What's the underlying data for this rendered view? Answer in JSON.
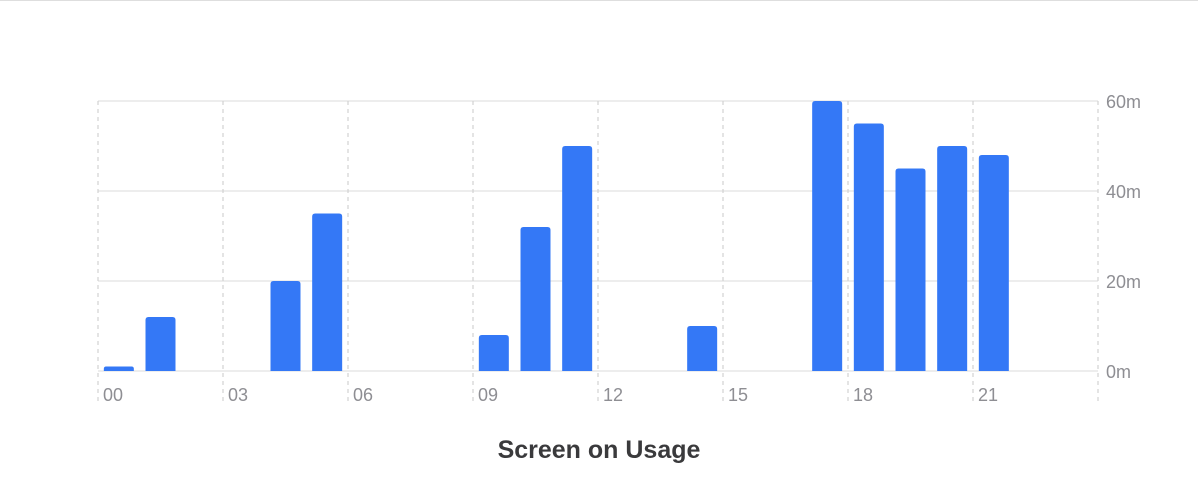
{
  "chart_data": {
    "type": "bar",
    "title": "Screen on Usage",
    "x_tick_labels": [
      "00",
      "03",
      "06",
      "09",
      "12",
      "15",
      "18",
      "21"
    ],
    "y_tick_labels": [
      "0m",
      "20m",
      "40m",
      "60m"
    ],
    "y_ticks": [
      0,
      20,
      40,
      60
    ],
    "ylim": [
      0,
      60
    ],
    "y_unit": "minutes",
    "hours": [
      0,
      1,
      2,
      3,
      4,
      5,
      6,
      7,
      8,
      9,
      10,
      11,
      12,
      13,
      14,
      15,
      16,
      17,
      18,
      19,
      20,
      21,
      22,
      23
    ],
    "values": [
      1,
      12,
      0,
      0,
      20,
      35,
      0,
      0,
      0,
      8,
      32,
      50,
      0,
      0,
      10,
      0,
      0,
      60,
      55,
      45,
      50,
      48,
      0,
      0
    ],
    "bar_color": "#3478f6",
    "grid_color": "#e2e2e2",
    "label_color": "#8e8e93",
    "grid": true,
    "y_axis_position": "right"
  }
}
